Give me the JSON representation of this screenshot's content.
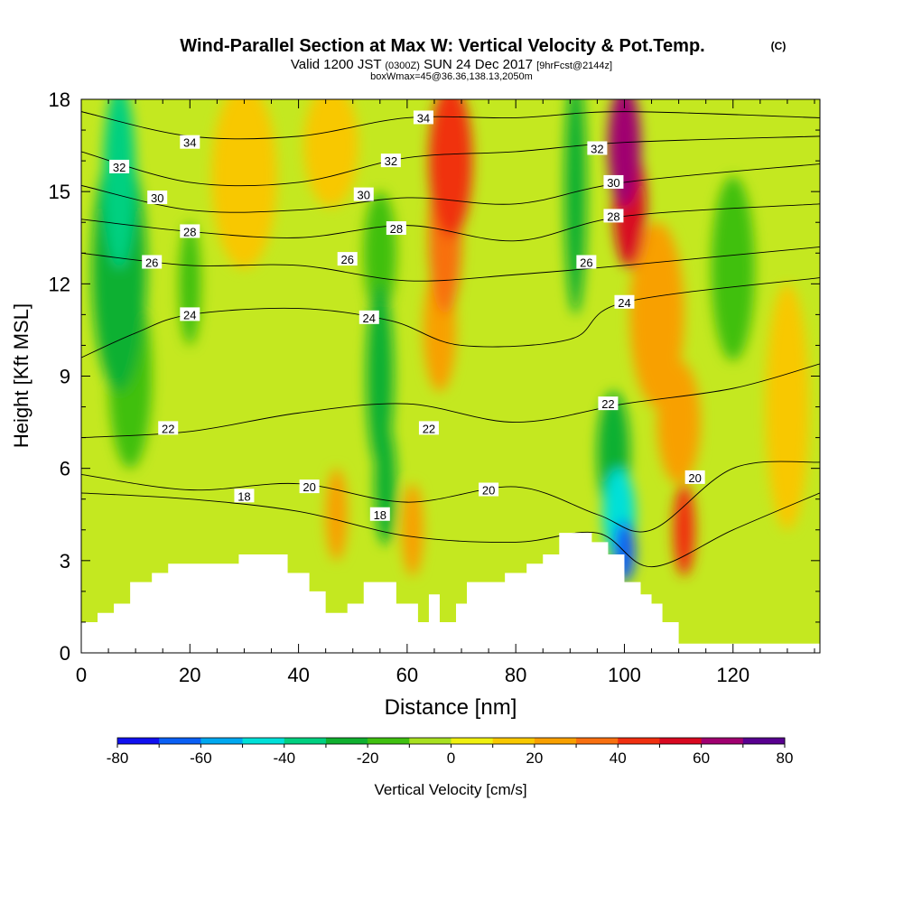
{
  "title": "Wind-Parallel Section at Max W: Vertical Velocity & Pot.Temp.",
  "title_mark": "(C)",
  "subtitle": {
    "valid": "Valid 1200 JST",
    "utc": "(0300Z)",
    "date": "SUN 24 Dec 2017",
    "fcst": "[9hrFcst@2144z]",
    "box": "boxWmax=45@36.36,138.13,2050m"
  },
  "chart_data": {
    "type": "heatmap",
    "xlabel": "Distance [nm]",
    "ylabel": "Height [Kft MSL]",
    "xlim": [
      0,
      136
    ],
    "ylim": [
      0,
      18
    ],
    "x_ticks": [
      0,
      20,
      40,
      60,
      80,
      100,
      120
    ],
    "y_ticks": [
      0,
      3,
      6,
      9,
      12,
      15,
      18
    ],
    "colorbar": {
      "label": "Vertical Velocity [cm/s]",
      "tick_labels": [
        "-80",
        "-60",
        "-40",
        "-20",
        "0",
        "20",
        "40",
        "60",
        "80"
      ],
      "levels": [
        -80,
        -70,
        -60,
        -50,
        -40,
        -30,
        -20,
        -10,
        0,
        10,
        20,
        30,
        40,
        50,
        60,
        70,
        80
      ],
      "colors": [
        "#1010f0",
        "#0a5ff5",
        "#00a8f0",
        "#00e0d8",
        "#00d080",
        "#10b030",
        "#40c010",
        "#a8e020",
        "#f0f010",
        "#f8c800",
        "#f8a000",
        "#f87010",
        "#f03010",
        "#d80820",
        "#a00070",
        "#580090"
      ]
    },
    "terrain": [
      [
        0,
        1.0
      ],
      [
        3,
        1.0
      ],
      [
        3,
        1.3
      ],
      [
        6,
        1.3
      ],
      [
        6,
        1.6
      ],
      [
        9,
        1.6
      ],
      [
        9,
        2.3
      ],
      [
        13,
        2.3
      ],
      [
        13,
        2.6
      ],
      [
        16,
        2.6
      ],
      [
        16,
        2.9
      ],
      [
        29,
        2.9
      ],
      [
        29,
        3.2
      ],
      [
        38,
        3.2
      ],
      [
        38,
        2.6
      ],
      [
        42,
        2.6
      ],
      [
        42,
        2.0
      ],
      [
        45,
        2.0
      ],
      [
        45,
        1.3
      ],
      [
        49,
        1.3
      ],
      [
        49,
        1.6
      ],
      [
        52,
        1.6
      ],
      [
        52,
        2.3
      ],
      [
        58,
        2.3
      ],
      [
        58,
        1.6
      ],
      [
        62,
        1.6
      ],
      [
        62,
        1.0
      ],
      [
        64,
        1.0
      ],
      [
        64,
        1.9
      ],
      [
        66,
        1.9
      ],
      [
        66,
        1.0
      ],
      [
        69,
        1.0
      ],
      [
        69,
        1.6
      ],
      [
        71,
        1.6
      ],
      [
        71,
        2.3
      ],
      [
        78,
        2.3
      ],
      [
        78,
        2.6
      ],
      [
        82,
        2.6
      ],
      [
        82,
        2.9
      ],
      [
        85,
        2.9
      ],
      [
        85,
        3.2
      ],
      [
        88,
        3.2
      ],
      [
        88,
        3.9
      ],
      [
        94,
        3.9
      ],
      [
        94,
        3.6
      ],
      [
        97,
        3.6
      ],
      [
        97,
        3.2
      ],
      [
        100,
        3.2
      ],
      [
        100,
        2.3
      ],
      [
        103,
        2.3
      ],
      [
        103,
        1.9
      ],
      [
        105,
        1.9
      ],
      [
        105,
        1.6
      ],
      [
        107,
        1.6
      ],
      [
        107,
        1.0
      ],
      [
        110,
        1.0
      ],
      [
        110,
        0.3
      ],
      [
        136,
        0.3
      ]
    ],
    "velocity_features": [
      {
        "x": 7,
        "y": 15.5,
        "rx": 3,
        "ry": 3,
        "value": -35
      },
      {
        "x": 7,
        "y": 12.5,
        "rx": 5,
        "ry": 4,
        "value": -25
      },
      {
        "x": 9,
        "y": 9.0,
        "rx": 4,
        "ry": 3,
        "value": -15
      },
      {
        "x": 20,
        "y": 12.0,
        "rx": 2,
        "ry": 2,
        "value": -15
      },
      {
        "x": 30,
        "y": 15.5,
        "rx": 6,
        "ry": 3,
        "value": 15
      },
      {
        "x": 46,
        "y": 16.5,
        "rx": 5,
        "ry": 2,
        "value": 15
      },
      {
        "x": 55,
        "y": 13.0,
        "rx": 3,
        "ry": 2,
        "value": -20
      },
      {
        "x": 55,
        "y": 9.0,
        "rx": 2.5,
        "ry": 3,
        "value": -25
      },
      {
        "x": 56,
        "y": 5.5,
        "rx": 2,
        "ry": 2,
        "value": -25
      },
      {
        "x": 68,
        "y": 16.0,
        "rx": 4,
        "ry": 2.5,
        "value": 45
      },
      {
        "x": 67,
        "y": 13.5,
        "rx": 3,
        "ry": 2.5,
        "value": 35
      },
      {
        "x": 66,
        "y": 10.5,
        "rx": 3,
        "ry": 2,
        "value": 25
      },
      {
        "x": 61,
        "y": 4.0,
        "rx": 2,
        "ry": 1.5,
        "value": 25
      },
      {
        "x": 47,
        "y": 4.5,
        "rx": 2,
        "ry": 1.5,
        "value": 25
      },
      {
        "x": 91,
        "y": 15.0,
        "rx": 2,
        "ry": 4,
        "value": -25
      },
      {
        "x": 100,
        "y": 16.5,
        "rx": 3,
        "ry": 2,
        "value": 65
      },
      {
        "x": 101,
        "y": 14.5,
        "rx": 3,
        "ry": 2,
        "value": 55
      },
      {
        "x": 106,
        "y": 11.0,
        "rx": 5,
        "ry": 3,
        "value": 25
      },
      {
        "x": 110,
        "y": 7.5,
        "rx": 4,
        "ry": 2,
        "value": 20
      },
      {
        "x": 111,
        "y": 4.0,
        "rx": 2,
        "ry": 1.5,
        "value": 45
      },
      {
        "x": 98,
        "y": 6.5,
        "rx": 3,
        "ry": 2,
        "value": -25
      },
      {
        "x": 99,
        "y": 4.5,
        "rx": 3,
        "ry": 1.5,
        "value": -45
      },
      {
        "x": 100,
        "y": 3.3,
        "rx": 2,
        "ry": 1,
        "value": -70
      },
      {
        "x": 120,
        "y": 12.5,
        "rx": 4,
        "ry": 3,
        "value": -15
      },
      {
        "x": 130,
        "y": 8.0,
        "rx": 4,
        "ry": 4,
        "value": 15
      }
    ],
    "contours": [
      {
        "value": 34,
        "points": [
          [
            0,
            17.6
          ],
          [
            20,
            16.8
          ],
          [
            40,
            16.8
          ],
          [
            60,
            17.4
          ],
          [
            80,
            17.4
          ],
          [
            100,
            17.6
          ],
          [
            136,
            17.4
          ]
        ]
      },
      {
        "value": 32,
        "points": [
          [
            0,
            16.3
          ],
          [
            20,
            15.3
          ],
          [
            40,
            15.3
          ],
          [
            60,
            16.1
          ],
          [
            80,
            16.3
          ],
          [
            100,
            16.6
          ],
          [
            136,
            16.8
          ]
        ]
      },
      {
        "value": 30,
        "points": [
          [
            0,
            15.2
          ],
          [
            20,
            14.4
          ],
          [
            40,
            14.4
          ],
          [
            60,
            14.8
          ],
          [
            80,
            14.6
          ],
          [
            100,
            15.3
          ],
          [
            136,
            15.9
          ]
        ]
      },
      {
        "value": 28,
        "points": [
          [
            0,
            14.1
          ],
          [
            20,
            13.7
          ],
          [
            40,
            13.5
          ],
          [
            60,
            13.9
          ],
          [
            80,
            13.4
          ],
          [
            100,
            14.2
          ],
          [
            136,
            14.6
          ]
        ]
      },
      {
        "value": 26,
        "points": [
          [
            0,
            13.0
          ],
          [
            20,
            12.6
          ],
          [
            40,
            12.6
          ],
          [
            60,
            12.1
          ],
          [
            80,
            12.3
          ],
          [
            100,
            12.6
          ],
          [
            136,
            13.2
          ]
        ]
      },
      {
        "value": 24,
        "points": [
          [
            0,
            9.6
          ],
          [
            10,
            10.4
          ],
          [
            20,
            11.0
          ],
          [
            40,
            11.2
          ],
          [
            57,
            10.8
          ],
          [
            70,
            10.0
          ],
          [
            90,
            10.2
          ],
          [
            100,
            11.4
          ],
          [
            136,
            12.2
          ]
        ]
      },
      {
        "value": 22,
        "points": [
          [
            0,
            7.0
          ],
          [
            20,
            7.2
          ],
          [
            40,
            7.8
          ],
          [
            60,
            8.1
          ],
          [
            80,
            7.5
          ],
          [
            100,
            8.1
          ],
          [
            120,
            8.6
          ],
          [
            136,
            9.4
          ]
        ]
      },
      {
        "value": 20,
        "points": [
          [
            0,
            5.8
          ],
          [
            20,
            5.3
          ],
          [
            40,
            5.5
          ],
          [
            60,
            4.9
          ],
          [
            80,
            5.4
          ],
          [
            95,
            4.5
          ],
          [
            105,
            4.0
          ],
          [
            120,
            6.0
          ],
          [
            136,
            6.2
          ]
        ]
      },
      {
        "value": 18,
        "points": [
          [
            0,
            5.2
          ],
          [
            20,
            5.0
          ],
          [
            40,
            4.6
          ],
          [
            60,
            3.8
          ],
          [
            80,
            3.6
          ],
          [
            95,
            3.9
          ],
          [
            105,
            2.8
          ],
          [
            120,
            4.0
          ],
          [
            136,
            5.2
          ]
        ]
      }
    ],
    "contour_labels": [
      {
        "text": "34",
        "x": 20,
        "y": 16.6
      },
      {
        "text": "34",
        "x": 63,
        "y": 17.4
      },
      {
        "text": "32",
        "x": 7,
        "y": 15.8
      },
      {
        "text": "32",
        "x": 57,
        "y": 16.0
      },
      {
        "text": "32",
        "x": 95,
        "y": 16.4
      },
      {
        "text": "30",
        "x": 14,
        "y": 14.8
      },
      {
        "text": "30",
        "x": 52,
        "y": 14.9
      },
      {
        "text": "30",
        "x": 98,
        "y": 15.3
      },
      {
        "text": "28",
        "x": 20,
        "y": 13.7
      },
      {
        "text": "28",
        "x": 58,
        "y": 13.8
      },
      {
        "text": "28",
        "x": 98,
        "y": 14.2
      },
      {
        "text": "26",
        "x": 13,
        "y": 12.7
      },
      {
        "text": "26",
        "x": 49,
        "y": 12.8
      },
      {
        "text": "26",
        "x": 93,
        "y": 12.7
      },
      {
        "text": "24",
        "x": 20,
        "y": 11.0
      },
      {
        "text": "24",
        "x": 53,
        "y": 10.9
      },
      {
        "text": "24",
        "x": 100,
        "y": 11.4
      },
      {
        "text": "22",
        "x": 16,
        "y": 7.3
      },
      {
        "text": "22",
        "x": 64,
        "y": 7.3
      },
      {
        "text": "22",
        "x": 97,
        "y": 8.1
      },
      {
        "text": "20",
        "x": 42,
        "y": 5.4
      },
      {
        "text": "20",
        "x": 75,
        "y": 5.3
      },
      {
        "text": "20",
        "x": 113,
        "y": 5.7
      },
      {
        "text": "18",
        "x": 30,
        "y": 5.1
      },
      {
        "text": "18",
        "x": 55,
        "y": 4.5
      }
    ]
  }
}
